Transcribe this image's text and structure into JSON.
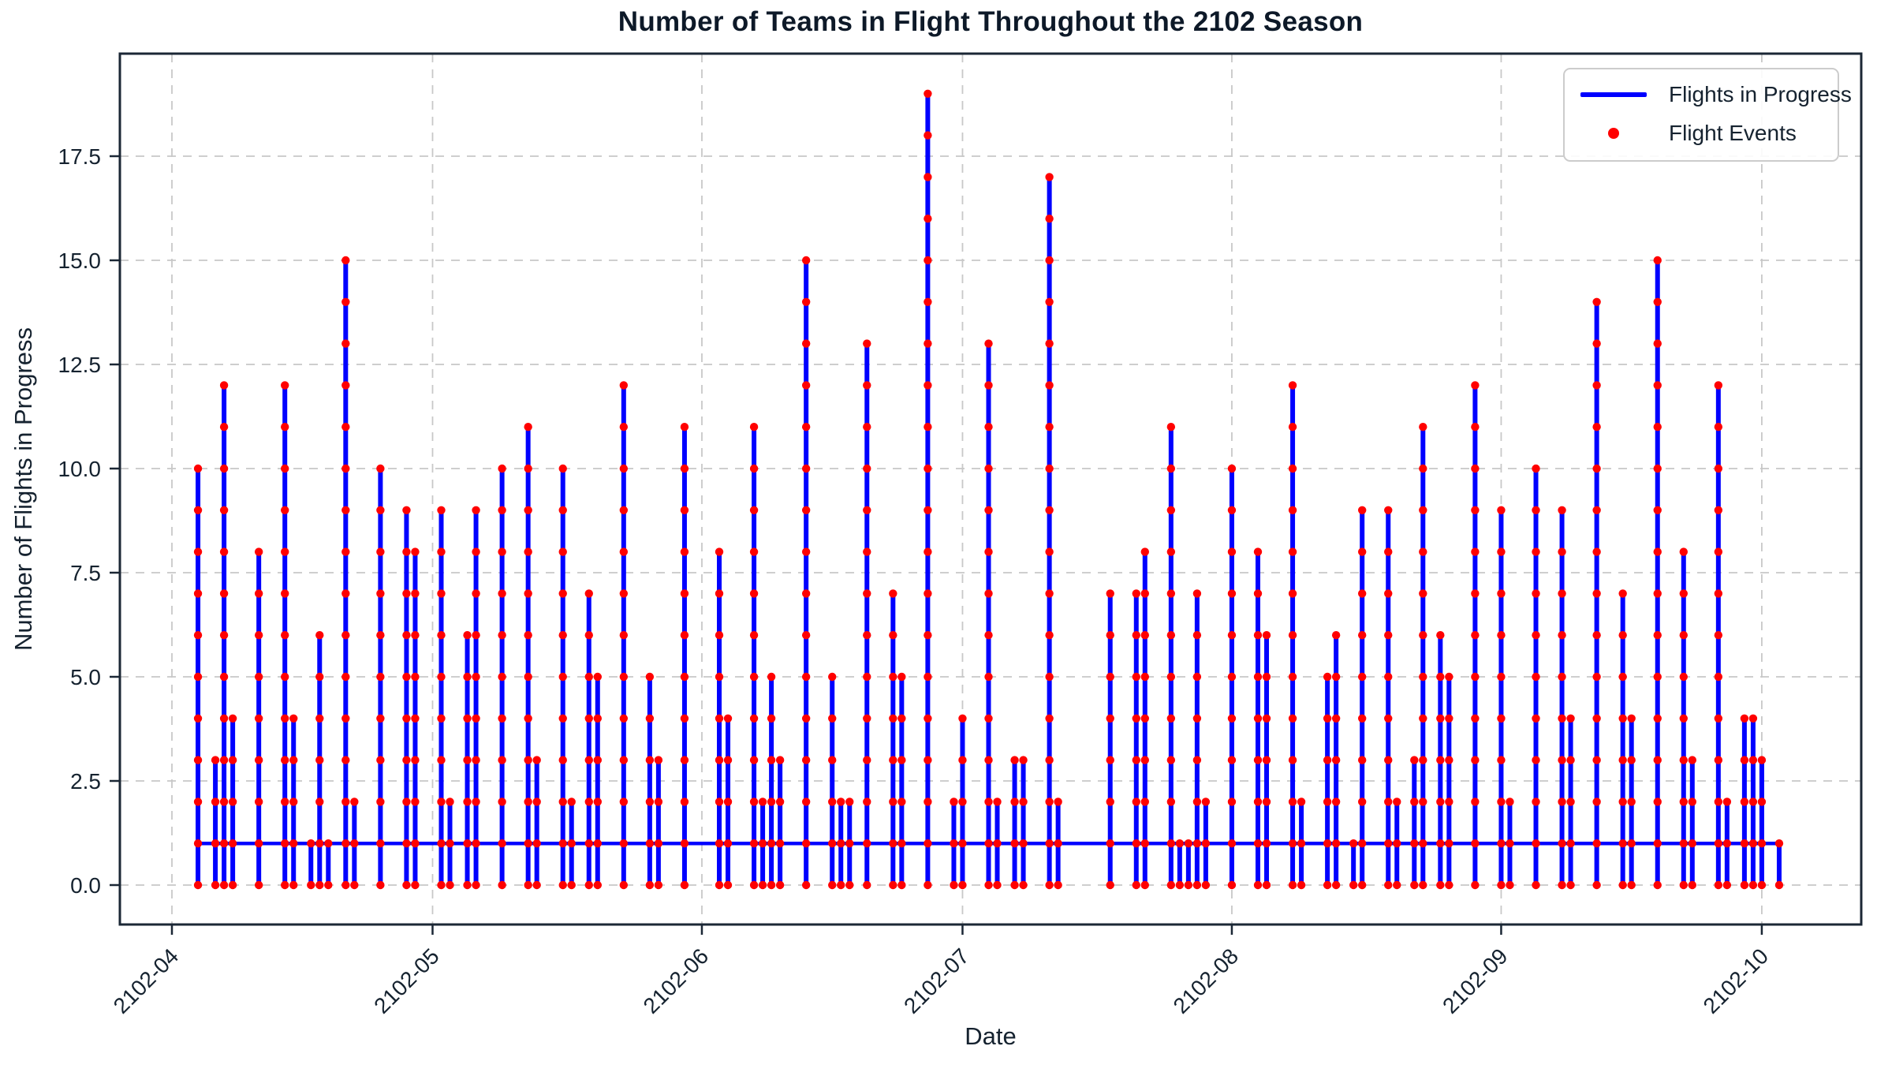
{
  "chart_data": {
    "type": "line",
    "title": "Number of Teams in Flight Throughout the 2102 Season",
    "xlabel": "Date",
    "ylabel": "Number of Flights in Progress",
    "ylim": [
      -0.95,
      19.95
    ],
    "xlim_days": [
      -6,
      194
    ],
    "grid": true,
    "grid_style": "dashed",
    "legend_position": "upper right",
    "x_tick_rotation_deg": 45,
    "colors": {
      "line": "#0000ff",
      "marker": "#ff0000",
      "grid": "#c8c8c8",
      "axis": "#1b2735",
      "text": "#15222f",
      "title": "#0d1928",
      "background": "#ffffff",
      "legend_border": "#cccccc"
    },
    "series": [
      {
        "name": "Flights in Progress",
        "color": "#0000ff",
        "style": "line"
      },
      {
        "name": "Flight Events",
        "color": "#ff0000",
        "style": "scatter"
      }
    ],
    "y_ticks": [
      {
        "value": 0,
        "label": "0.0"
      },
      {
        "value": 2.5,
        "label": "2.5"
      },
      {
        "value": 5,
        "label": "5.0"
      },
      {
        "value": 7.5,
        "label": "7.5"
      },
      {
        "value": 10,
        "label": "10.0"
      },
      {
        "value": 12.5,
        "label": "12.5"
      },
      {
        "value": 15,
        "label": "15.0"
      },
      {
        "value": 17.5,
        "label": "17.5"
      }
    ],
    "x_ticks": [
      {
        "day": 0,
        "label": "2102-04"
      },
      {
        "day": 30,
        "label": "2102-05"
      },
      {
        "day": 61,
        "label": "2102-06"
      },
      {
        "day": 91,
        "label": "2102-07"
      },
      {
        "day": 122,
        "label": "2102-08"
      },
      {
        "day": 153,
        "label": "2102-09"
      },
      {
        "day": 183,
        "label": "2102-10"
      }
    ],
    "baseline": {
      "value": 1,
      "start_day": 3,
      "end_day": 185
    },
    "spikes": [
      {
        "day": 3,
        "date": "2102-04-04",
        "peak": 10
      },
      {
        "day": 5,
        "date": "2102-04-06",
        "peak": 3
      },
      {
        "day": 6,
        "date": "2102-04-07",
        "peak": 12
      },
      {
        "day": 7,
        "date": "2102-04-08",
        "peak": 4
      },
      {
        "day": 10,
        "date": "2102-04-11",
        "peak": 8
      },
      {
        "day": 13,
        "date": "2102-04-14",
        "peak": 12
      },
      {
        "day": 14,
        "date": "2102-04-15",
        "peak": 4
      },
      {
        "day": 16,
        "date": "2102-04-17",
        "peak": 1
      },
      {
        "day": 17,
        "date": "2102-04-18",
        "peak": 6
      },
      {
        "day": 18,
        "date": "2102-04-19",
        "peak": 1
      },
      {
        "day": 20,
        "date": "2102-04-21",
        "peak": 15
      },
      {
        "day": 21,
        "date": "2102-04-22",
        "peak": 2
      },
      {
        "day": 24,
        "date": "2102-04-25",
        "peak": 10
      },
      {
        "day": 27,
        "date": "2102-04-28",
        "peak": 9
      },
      {
        "day": 28,
        "date": "2102-04-29",
        "peak": 8
      },
      {
        "day": 31,
        "date": "2102-05-02",
        "peak": 9
      },
      {
        "day": 32,
        "date": "2102-05-03",
        "peak": 2
      },
      {
        "day": 34,
        "date": "2102-05-05",
        "peak": 6
      },
      {
        "day": 35,
        "date": "2102-05-06",
        "peak": 9
      },
      {
        "day": 38,
        "date": "2102-05-09",
        "peak": 10
      },
      {
        "day": 41,
        "date": "2102-05-12",
        "peak": 11
      },
      {
        "day": 42,
        "date": "2102-05-13",
        "peak": 3
      },
      {
        "day": 45,
        "date": "2102-05-16",
        "peak": 10
      },
      {
        "day": 46,
        "date": "2102-05-17",
        "peak": 2
      },
      {
        "day": 48,
        "date": "2102-05-19",
        "peak": 7
      },
      {
        "day": 49,
        "date": "2102-05-20",
        "peak": 5
      },
      {
        "day": 52,
        "date": "2102-05-23",
        "peak": 12
      },
      {
        "day": 55,
        "date": "2102-05-26",
        "peak": 5
      },
      {
        "day": 56,
        "date": "2102-05-27",
        "peak": 3
      },
      {
        "day": 59,
        "date": "2102-05-30",
        "peak": 11
      },
      {
        "day": 63,
        "date": "2102-06-03",
        "peak": 8
      },
      {
        "day": 64,
        "date": "2102-06-04",
        "peak": 4
      },
      {
        "day": 67,
        "date": "2102-06-07",
        "peak": 11
      },
      {
        "day": 68,
        "date": "2102-06-08",
        "peak": 2
      },
      {
        "day": 69,
        "date": "2102-06-09",
        "peak": 5
      },
      {
        "day": 70,
        "date": "2102-06-10",
        "peak": 3
      },
      {
        "day": 73,
        "date": "2102-06-13",
        "peak": 15
      },
      {
        "day": 76,
        "date": "2102-06-16",
        "peak": 5
      },
      {
        "day": 77,
        "date": "2102-06-17",
        "peak": 2
      },
      {
        "day": 78,
        "date": "2102-06-18",
        "peak": 2
      },
      {
        "day": 80,
        "date": "2102-06-20",
        "peak": 13
      },
      {
        "day": 83,
        "date": "2102-06-23",
        "peak": 7
      },
      {
        "day": 84,
        "date": "2102-06-24",
        "peak": 5
      },
      {
        "day": 87,
        "date": "2102-06-27",
        "peak": 19
      },
      {
        "day": 90,
        "date": "2102-06-30",
        "peak": 2
      },
      {
        "day": 91,
        "date": "2102-07-01",
        "peak": 4
      },
      {
        "day": 94,
        "date": "2102-07-04",
        "peak": 13
      },
      {
        "day": 95,
        "date": "2102-07-05",
        "peak": 2
      },
      {
        "day": 97,
        "date": "2102-07-07",
        "peak": 3
      },
      {
        "day": 98,
        "date": "2102-07-08",
        "peak": 3
      },
      {
        "day": 101,
        "date": "2102-07-11",
        "peak": 17
      },
      {
        "day": 102,
        "date": "2102-07-12",
        "peak": 2
      },
      {
        "day": 108,
        "date": "2102-07-18",
        "peak": 7
      },
      {
        "day": 111,
        "date": "2102-07-21",
        "peak": 7
      },
      {
        "day": 112,
        "date": "2102-07-22",
        "peak": 8
      },
      {
        "day": 115,
        "date": "2102-07-25",
        "peak": 11
      },
      {
        "day": 116,
        "date": "2102-07-26",
        "peak": 1
      },
      {
        "day": 117,
        "date": "2102-07-27",
        "peak": 1
      },
      {
        "day": 118,
        "date": "2102-07-28",
        "peak": 7
      },
      {
        "day": 119,
        "date": "2102-07-29",
        "peak": 2
      },
      {
        "day": 122,
        "date": "2102-08-01",
        "peak": 10
      },
      {
        "day": 125,
        "date": "2102-08-04",
        "peak": 8
      },
      {
        "day": 126,
        "date": "2102-08-05",
        "peak": 6
      },
      {
        "day": 129,
        "date": "2102-08-08",
        "peak": 12
      },
      {
        "day": 130,
        "date": "2102-08-09",
        "peak": 2
      },
      {
        "day": 133,
        "date": "2102-08-12",
        "peak": 5
      },
      {
        "day": 134,
        "date": "2102-08-13",
        "peak": 6
      },
      {
        "day": 136,
        "date": "2102-08-15",
        "peak": 1
      },
      {
        "day": 137,
        "date": "2102-08-16",
        "peak": 9
      },
      {
        "day": 140,
        "date": "2102-08-19",
        "peak": 9
      },
      {
        "day": 141,
        "date": "2102-08-20",
        "peak": 2
      },
      {
        "day": 143,
        "date": "2102-08-22",
        "peak": 3
      },
      {
        "day": 144,
        "date": "2102-08-23",
        "peak": 11
      },
      {
        "day": 146,
        "date": "2102-08-25",
        "peak": 6
      },
      {
        "day": 147,
        "date": "2102-08-26",
        "peak": 5
      },
      {
        "day": 150,
        "date": "2102-08-29",
        "peak": 12
      },
      {
        "day": 153,
        "date": "2102-09-01",
        "peak": 9
      },
      {
        "day": 154,
        "date": "2102-09-02",
        "peak": 2
      },
      {
        "day": 157,
        "date": "2102-09-05",
        "peak": 10
      },
      {
        "day": 160,
        "date": "2102-09-08",
        "peak": 9
      },
      {
        "day": 161,
        "date": "2102-09-09",
        "peak": 4
      },
      {
        "day": 164,
        "date": "2102-09-12",
        "peak": 14
      },
      {
        "day": 167,
        "date": "2102-09-15",
        "peak": 7
      },
      {
        "day": 168,
        "date": "2102-09-16",
        "peak": 4
      },
      {
        "day": 171,
        "date": "2102-09-19",
        "peak": 15
      },
      {
        "day": 174,
        "date": "2102-09-22",
        "peak": 8
      },
      {
        "day": 175,
        "date": "2102-09-23",
        "peak": 3
      },
      {
        "day": 178,
        "date": "2102-09-26",
        "peak": 12
      },
      {
        "day": 179,
        "date": "2102-09-27",
        "peak": 2
      },
      {
        "day": 181,
        "date": "2102-09-29",
        "peak": 4
      },
      {
        "day": 182,
        "date": "2102-09-30",
        "peak": 4
      },
      {
        "day": 183,
        "date": "2102-10-01",
        "peak": 3
      },
      {
        "day": 185,
        "date": "2102-10-03",
        "peak": 1
      }
    ]
  }
}
